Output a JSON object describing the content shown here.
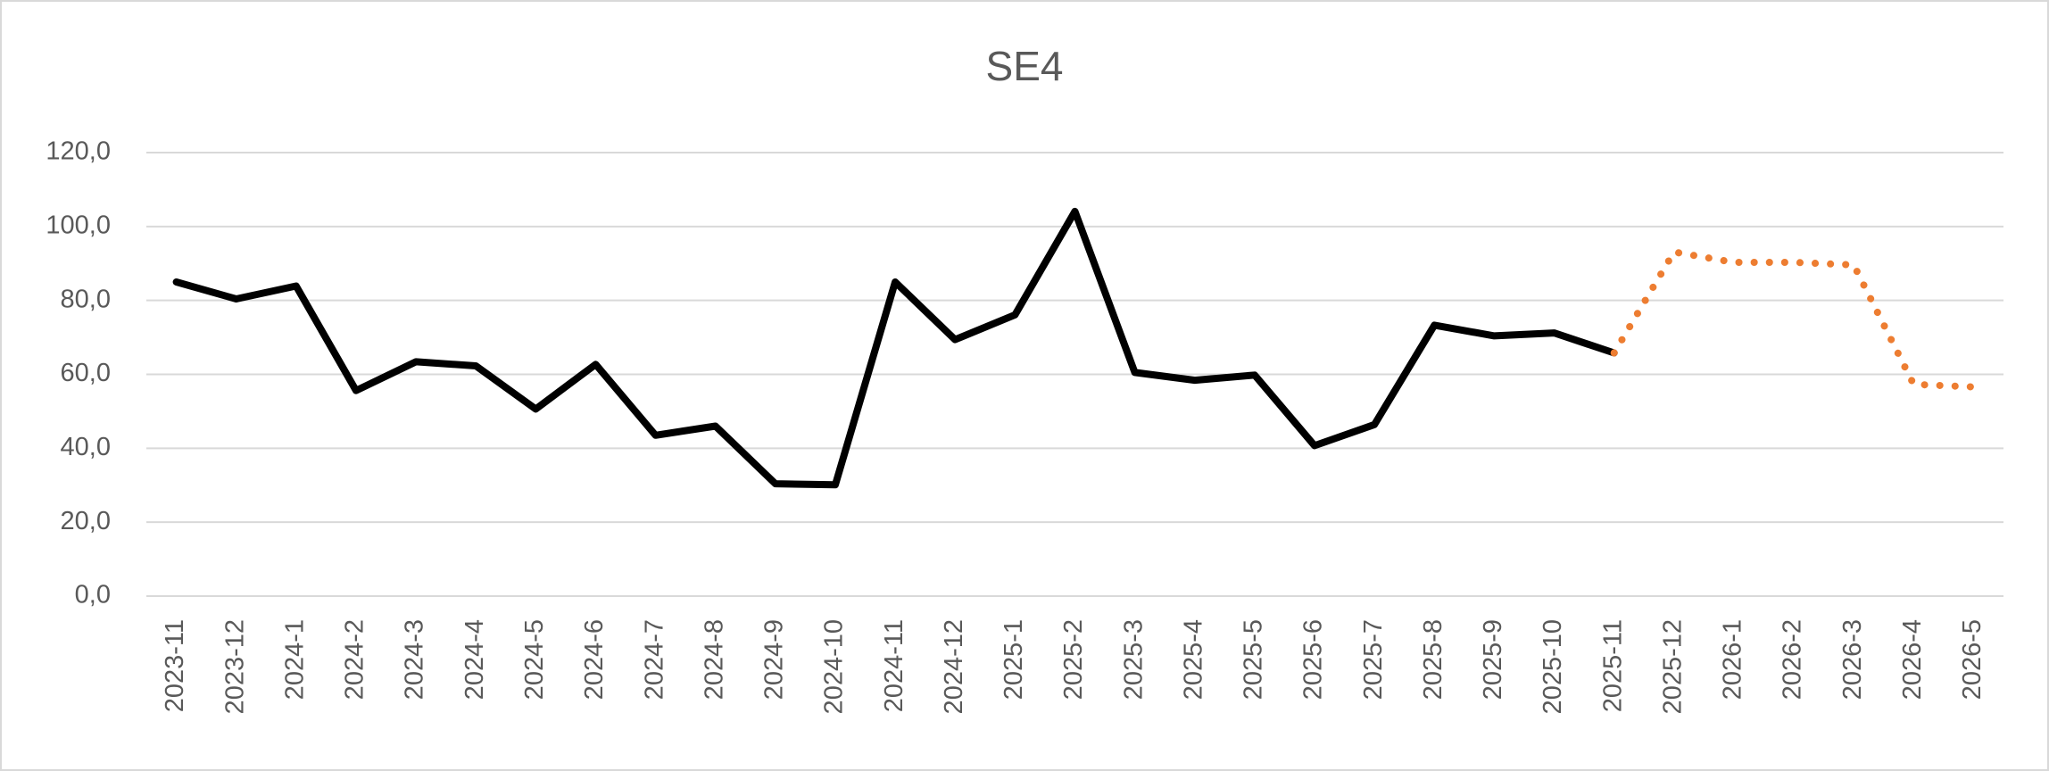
{
  "chart_data": {
    "type": "line",
    "title": "SE4",
    "categories": [
      "2023-11",
      "2023-12",
      "2024-1",
      "2024-2",
      "2024-3",
      "2024-4",
      "2024-5",
      "2024-6",
      "2024-7",
      "2024-8",
      "2024-9",
      "2024-10",
      "2024-11",
      "2024-12",
      "2025-1",
      "2025-2",
      "2025-3",
      "2025-4",
      "2025-5",
      "2025-6",
      "2025-7",
      "2025-8",
      "2025-9",
      "2025-10",
      "2025-11",
      "2025-12",
      "2026-1",
      "2026-2",
      "2026-3",
      "2026-4",
      "2026-5"
    ],
    "series": [
      {
        "color": "#000000",
        "line_style": "solid",
        "values": [
          85.0,
          80.4,
          83.9,
          55.6,
          63.4,
          62.3,
          50.6,
          62.7,
          43.5,
          46.0,
          30.4,
          30.1,
          85.0,
          69.4,
          76.1,
          104.1,
          60.5,
          58.4,
          59.8,
          40.7,
          46.4,
          73.3,
          70.4,
          71.2,
          65.8,
          null,
          null,
          null,
          null,
          null,
          null
        ]
      },
      {
        "color": "#ed7d31",
        "line_style": "dotted",
        "values": [
          null,
          null,
          null,
          null,
          null,
          null,
          null,
          null,
          null,
          null,
          null,
          null,
          null,
          null,
          null,
          null,
          null,
          null,
          null,
          null,
          null,
          null,
          null,
          null,
          65.8,
          93.1,
          90.3,
          90.3,
          89.6,
          57.3,
          56.6
        ]
      }
    ],
    "ylim": [
      0,
      120
    ],
    "yticks": [
      {
        "value": 0,
        "label": "0,0"
      },
      {
        "value": 20,
        "label": "20,0"
      },
      {
        "value": 40,
        "label": "40,0"
      },
      {
        "value": 60,
        "label": "60,0"
      },
      {
        "value": 80,
        "label": "80,0"
      },
      {
        "value": 100,
        "label": "100,0"
      },
      {
        "value": 120,
        "label": "120,0"
      }
    ],
    "grid": true
  }
}
